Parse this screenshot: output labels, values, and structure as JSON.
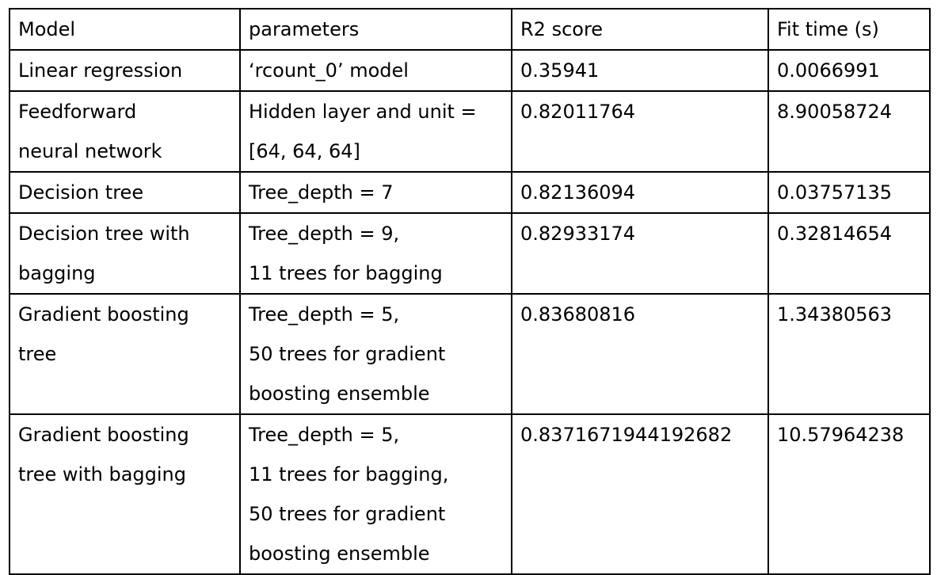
{
  "table": {
    "headers": [
      "Model",
      "parameters",
      "R2 score",
      "Fit time (s)"
    ],
    "rows": [
      {
        "model": [
          "Linear regression"
        ],
        "parameters": [
          "‘rcount_0’ model"
        ],
        "r2": "0.35941",
        "fit_time": "0.0066991"
      },
      {
        "model": [
          "Feedforward",
          "neural network"
        ],
        "parameters": [
          "Hidden layer and unit =",
          "[64, 64, 64]"
        ],
        "r2": "0.82011764",
        "fit_time": "8.90058724"
      },
      {
        "model": [
          "Decision tree"
        ],
        "parameters": [
          "Tree_depth = 7"
        ],
        "r2": "0.82136094",
        "fit_time": "0.03757135"
      },
      {
        "model": [
          "Decision tree with",
          "bagging"
        ],
        "parameters": [
          "Tree_depth = 9,",
          "11 trees for bagging"
        ],
        "r2": "0.82933174",
        "fit_time": "0.32814654"
      },
      {
        "model": [
          "Gradient boosting",
          "tree"
        ],
        "parameters": [
          "Tree_depth = 5,",
          "50 trees for gradient",
          "boosting ensemble"
        ],
        "r2": "0.83680816",
        "fit_time": "1.34380563"
      },
      {
        "model": [
          "Gradient boosting",
          "tree with bagging"
        ],
        "parameters": [
          "Tree_depth = 5,",
          "11 trees for bagging,",
          "50 trees for gradient",
          "boosting ensemble"
        ],
        "r2": "0.8371671944192682",
        "fit_time": "10.57964238"
      }
    ]
  }
}
